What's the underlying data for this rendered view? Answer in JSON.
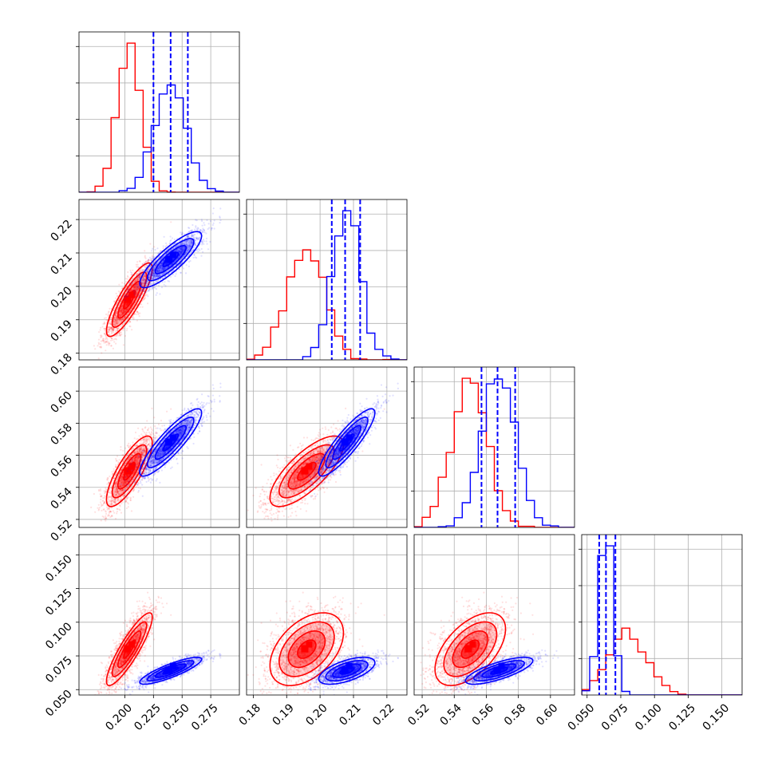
{
  "colors": {
    "series_a": "#ff0000",
    "series_b": "#0000ff",
    "grid": "#b0b0b0"
  },
  "chart_data": {
    "type": "corner-plot",
    "grid": true,
    "n_params": 4,
    "params": [
      {
        "range": [
          0.16,
          0.3
        ],
        "ticks": [
          0.2,
          0.225,
          0.25,
          0.275
        ],
        "tick_labels": [
          "0.200",
          "0.225",
          "0.250",
          "0.275"
        ]
      },
      {
        "range": [
          0.178,
          0.226
        ],
        "ticks": [
          0.18,
          0.19,
          0.2,
          0.21,
          0.22
        ],
        "tick_labels": [
          "0.18",
          "0.19",
          "0.20",
          "0.21",
          "0.22"
        ]
      },
      {
        "range": [
          0.515,
          0.615
        ],
        "ticks": [
          0.52,
          0.54,
          0.56,
          0.58,
          0.6
        ],
        "tick_labels": [
          "0.52",
          "0.54",
          "0.56",
          "0.58",
          "0.60"
        ]
      },
      {
        "range": [
          0.046,
          0.165
        ],
        "ticks": [
          0.05,
          0.075,
          0.1,
          0.125,
          0.15
        ],
        "tick_labels": [
          "0.050",
          "0.075",
          "0.100",
          "0.125",
          "0.150"
        ]
      }
    ],
    "series": [
      {
        "name": "",
        "color": "#ff0000",
        "means": [
          0.204,
          0.196,
          0.55,
          0.08
        ],
        "stds": [
          0.01,
          0.0055,
          0.011,
          0.0135
        ],
        "corr": [
          [
            1,
            0.85,
            0.8,
            0.88
          ],
          [
            0.85,
            1,
            0.75,
            0.45
          ],
          [
            0.8,
            0.75,
            1,
            0.55
          ],
          [
            0.88,
            0.45,
            0.55,
            1
          ]
        ],
        "quantiles": null
      },
      {
        "name": "",
        "color": "#0000ff",
        "means": [
          0.24,
          0.208,
          0.568,
          0.064
        ],
        "stds": [
          0.0135,
          0.0042,
          0.0105,
          0.005
        ],
        "corr": [
          [
            1,
            0.85,
            0.88,
            0.85
          ],
          [
            0.85,
            1,
            0.88,
            0.6
          ],
          [
            0.88,
            0.88,
            1,
            0.75
          ],
          [
            0.85,
            0.6,
            0.75,
            1
          ]
        ],
        "quantiles": [
          [
            0.225,
            0.24,
            0.255
          ],
          [
            0.2035,
            0.2075,
            0.212
          ],
          [
            0.557,
            0.567,
            0.578
          ],
          [
            0.059,
            0.064,
            0.071
          ]
        ]
      }
    ]
  }
}
